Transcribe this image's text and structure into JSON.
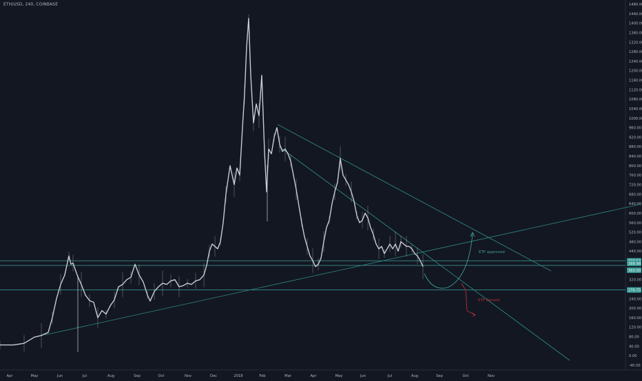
{
  "symbol_title": "ETH/USD, 240, COINBASE",
  "colors": {
    "background": "#131722",
    "price_line": "#c9ccd3",
    "trendline": "#2e8a85",
    "hline": "#3b9c96",
    "approved": "#3f9f97",
    "denied": "#b5323a",
    "axis_text": "#b2b5be",
    "badge_bg": "#3b9c96",
    "badge_text": "#e9ecef"
  },
  "chart_data": {
    "type": "line",
    "title": "ETH/USD, 240, COINBASE",
    "xlabel": "",
    "ylabel": "",
    "ylim": [
      -60,
      1500
    ],
    "y_ticks": [
      "1480.00",
      "1440.00",
      "1400.00",
      "1360.00",
      "1320.00",
      "1280.00",
      "1240.00",
      "1200.00",
      "1160.00",
      "1120.00",
      "1080.00",
      "1040.00",
      "1000.00",
      "960.00",
      "920.00",
      "880.00",
      "840.00",
      "800.00",
      "760.00",
      "720.00",
      "680.00",
      "640.00",
      "600.00",
      "560.00",
      "520.00",
      "480.00",
      "440.00",
      "400.00",
      "360.00",
      "320.00",
      "280.00",
      "240.00",
      "200.00",
      "160.00",
      "120.00",
      "80.00",
      "40.00",
      "0.00",
      "-40.00"
    ],
    "x_ticks": [
      "Apr",
      "May",
      "Jun",
      "Jul",
      "Aug",
      "Sep",
      "Oct",
      "Nov",
      "Dec",
      "2018",
      "Feb",
      "Mar",
      "Apr",
      "May",
      "Jun",
      "Jul",
      "Aug",
      "Sep",
      "Oct",
      "Nov"
    ],
    "series": [
      {
        "values": [
          [
            0,
            45
          ],
          [
            20,
            45
          ],
          [
            35,
            52
          ],
          [
            50,
            78
          ],
          [
            60,
            85
          ],
          [
            70,
            98
          ],
          [
            76,
            160
          ],
          [
            82,
            240
          ],
          [
            88,
            300
          ],
          [
            94,
            340
          ],
          [
            100,
            420
          ],
          [
            103,
            385
          ],
          [
            106,
            390
          ],
          [
            112,
            340
          ],
          [
            118,
            300
          ],
          [
            124,
            255
          ],
          [
            130,
            232
          ],
          [
            136,
            225
          ],
          [
            142,
            160
          ],
          [
            148,
            190
          ],
          [
            154,
            175
          ],
          [
            160,
            210
          ],
          [
            166,
            235
          ],
          [
            172,
            290
          ],
          [
            178,
            300
          ],
          [
            184,
            320
          ],
          [
            190,
            330
          ],
          [
            196,
            385
          ],
          [
            202,
            340
          ],
          [
            208,
            310
          ],
          [
            214,
            255
          ],
          [
            218,
            230
          ],
          [
            224,
            270
          ],
          [
            230,
            290
          ],
          [
            236,
            305
          ],
          [
            242,
            300
          ],
          [
            248,
            315
          ],
          [
            254,
            320
          ],
          [
            260,
            290
          ],
          [
            266,
            295
          ],
          [
            272,
            305
          ],
          [
            278,
            300
          ],
          [
            284,
            315
          ],
          [
            290,
            320
          ],
          [
            296,
            340
          ],
          [
            300,
            380
          ],
          [
            304,
            440
          ],
          [
            308,
            470
          ],
          [
            312,
            460
          ],
          [
            316,
            450
          ],
          [
            320,
            480
          ],
          [
            324,
            560
          ],
          [
            328,
            680
          ],
          [
            334,
            800
          ],
          [
            340,
            720
          ],
          [
            344,
            790
          ],
          [
            348,
            760
          ],
          [
            352,
            960
          ],
          [
            355,
            1100
          ],
          [
            358,
            1300
          ],
          [
            361,
            1420
          ],
          [
            364,
            1180
          ],
          [
            368,
            980
          ],
          [
            372,
            1060
          ],
          [
            376,
            1010
          ],
          [
            380,
            1180
          ],
          [
            384,
            860
          ],
          [
            387,
            690
          ],
          [
            390,
            870
          ],
          [
            394,
            850
          ],
          [
            398,
            920
          ],
          [
            402,
            960
          ],
          [
            406,
            890
          ],
          [
            410,
            860
          ],
          [
            414,
            870
          ],
          [
            418,
            850
          ],
          [
            422,
            820
          ],
          [
            426,
            760
          ],
          [
            430,
            700
          ],
          [
            434,
            630
          ],
          [
            438,
            560
          ],
          [
            442,
            500
          ],
          [
            446,
            460
          ],
          [
            450,
            420
          ],
          [
            454,
            400
          ],
          [
            458,
            375
          ],
          [
            462,
            385
          ],
          [
            466,
            410
          ],
          [
            470,
            480
          ],
          [
            474,
            540
          ],
          [
            478,
            570
          ],
          [
            482,
            640
          ],
          [
            486,
            690
          ],
          [
            490,
            730
          ],
          [
            494,
            830
          ],
          [
            498,
            760
          ],
          [
            502,
            740
          ],
          [
            506,
            720
          ],
          [
            510,
            690
          ],
          [
            514,
            650
          ],
          [
            518,
            590
          ],
          [
            522,
            560
          ],
          [
            526,
            570
          ],
          [
            530,
            600
          ],
          [
            534,
            580
          ],
          [
            538,
            540
          ],
          [
            542,
            510
          ],
          [
            546,
            470
          ],
          [
            550,
            450
          ],
          [
            554,
            460
          ],
          [
            558,
            430
          ],
          [
            562,
            450
          ],
          [
            566,
            470
          ],
          [
            570,
            450
          ],
          [
            574,
            470
          ],
          [
            578,
            440
          ],
          [
            582,
            480
          ],
          [
            586,
            470
          ],
          [
            590,
            460
          ],
          [
            594,
            460
          ],
          [
            598,
            450
          ],
          [
            602,
            430
          ],
          [
            606,
            420
          ],
          [
            610,
            400
          ],
          [
            614,
            375
          ]
        ]
      }
    ],
    "price_levels": [
      {
        "price": 399.53,
        "label": "399.53"
      },
      {
        "price": 380.0,
        "label": "380.00"
      },
      {
        "price": 276.75,
        "label": "276.75"
      }
    ],
    "current_price_labels": [
      "388.98",
      "06:49:17",
      "360.00"
    ],
    "annotations": [
      {
        "text": "ETF approved",
        "color": "approved"
      },
      {
        "text": "ETF Denied",
        "color": "denied"
      }
    ]
  }
}
